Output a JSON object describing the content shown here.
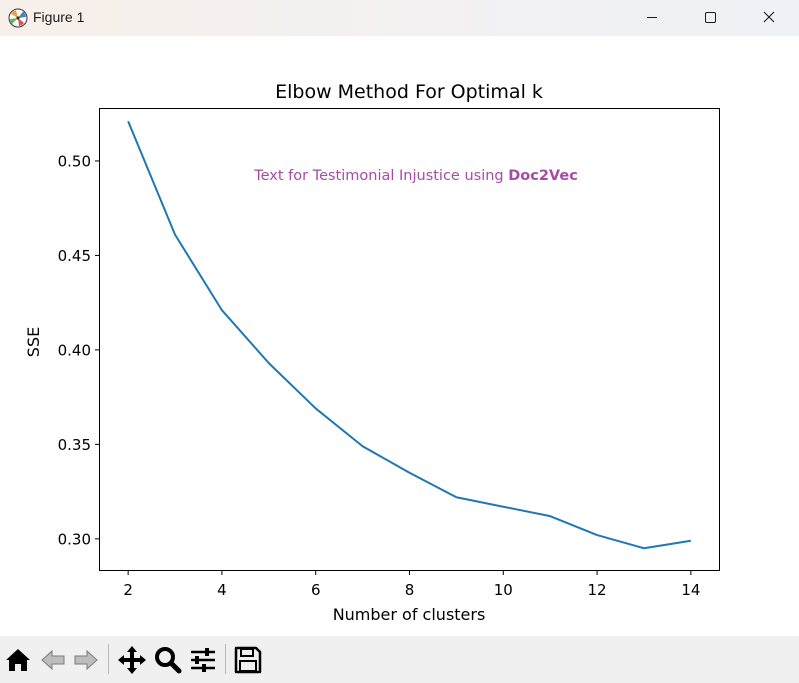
{
  "window": {
    "title": "Figure 1",
    "app_icon": "matplotlib-icon",
    "controls": [
      "minimize-icon",
      "maximize-icon",
      "close-icon"
    ]
  },
  "chart_data": {
    "type": "line",
    "title": "Elbow Method For Optimal k",
    "xlabel": "Number of clusters",
    "ylabel": "SSE",
    "annotation": {
      "text_plain": "Text for Testimonial Injustice using ",
      "text_bold": "Doc2Vec",
      "color": "#a64ca6"
    },
    "x": [
      2,
      3,
      4,
      5,
      6,
      7,
      8,
      9,
      10,
      11,
      12,
      13,
      14
    ],
    "series": [
      {
        "values": [
          0.521,
          0.461,
          0.421,
          0.393,
          0.369,
          0.349,
          0.335,
          0.322,
          0.317,
          0.312,
          0.302,
          0.295,
          0.299
        ],
        "color": "#1f77b4"
      }
    ],
    "xlim": [
      1.4,
      14.6
    ],
    "ylim": [
      0.2835,
      0.5275
    ],
    "xticks": [
      2,
      4,
      6,
      8,
      10,
      12,
      14
    ],
    "xtick_labels": [
      "2",
      "4",
      "6",
      "8",
      "10",
      "12",
      "14"
    ],
    "yticks": [
      0.3,
      0.35,
      0.4,
      0.45,
      0.5
    ],
    "ytick_labels": [
      "0.30",
      "0.35",
      "0.40",
      "0.45",
      "0.50"
    ],
    "grid": false,
    "legend": "none"
  },
  "toolbar": {
    "tools": [
      "home-icon",
      "back-icon",
      "forward-icon",
      "pan-icon",
      "zoom-icon",
      "configure-subplots-icon",
      "save-icon"
    ]
  }
}
